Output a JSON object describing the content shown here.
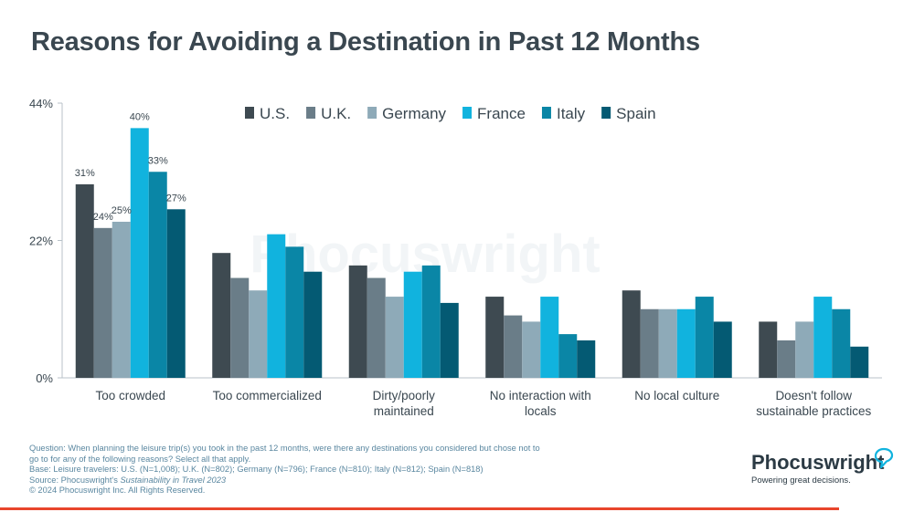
{
  "title": "Reasons for Avoiding a Destination in Past 12 Months",
  "watermark": "Phocuswright",
  "chart_data": {
    "type": "bar",
    "categories": [
      "Too crowded",
      "Too commercialized",
      "Dirty/poorly maintained",
      "No interaction with locals",
      "No local culture",
      "Doesn't follow sustainable practices"
    ],
    "category_label_lines": [
      [
        "Too crowded"
      ],
      [
        "Too commercialized"
      ],
      [
        "Dirty/poorly",
        "maintained"
      ],
      [
        "No interaction with",
        "locals"
      ],
      [
        "No local culture"
      ],
      [
        "Doesn't follow",
        "sustainable practices"
      ]
    ],
    "series": [
      {
        "name": "U.S.",
        "color": "#3e4a51",
        "values": [
          31,
          20,
          18,
          13,
          14,
          9
        ]
      },
      {
        "name": "U.K.",
        "color": "#6a7d88",
        "values": [
          24,
          16,
          16,
          10,
          11,
          6
        ]
      },
      {
        "name": "Germany",
        "color": "#8eaab8",
        "values": [
          25,
          14,
          13,
          9,
          11,
          9
        ]
      },
      {
        "name": "France",
        "color": "#11b3de",
        "values": [
          40,
          23,
          17,
          13,
          11,
          13
        ]
      },
      {
        "name": "Italy",
        "color": "#0a86a6",
        "values": [
          33,
          21,
          18,
          7,
          13,
          11
        ]
      },
      {
        "name": "Spain",
        "color": "#045a73",
        "values": [
          27,
          17,
          12,
          6,
          9,
          5
        ]
      }
    ],
    "data_labels": {
      "category_index": 0,
      "labels": [
        "31%",
        "24%",
        "25%",
        "40%",
        "33%",
        "27%"
      ]
    },
    "y_ticks": [
      "0%",
      "22%",
      "44%"
    ],
    "ylim": [
      0,
      44
    ],
    "grid": false,
    "legend_position": "top-center"
  },
  "footer": {
    "question": "Question: When planning the leisure trip(s) you took in the past 12 months, were there any destinations you considered but chose not to go to for any of the following reasons? Select all that apply.",
    "base": "Base: Leisure travelers: U.S. (N=1,008); U.K. (N=802); Germany (N=796); France (N=810); Italy (N=812); Spain (N=818)",
    "source_prefix": "Source: Phocuswright's ",
    "source_title": "Sustainability in Travel 2023",
    "copyright": "© 2024 Phocuswright Inc. All Rights Reserved."
  },
  "brand": {
    "name": "Phocuswright",
    "tagline": "Powering great decisions.",
    "icon": "speech-bubble-icon",
    "accent": "#e8452c"
  }
}
